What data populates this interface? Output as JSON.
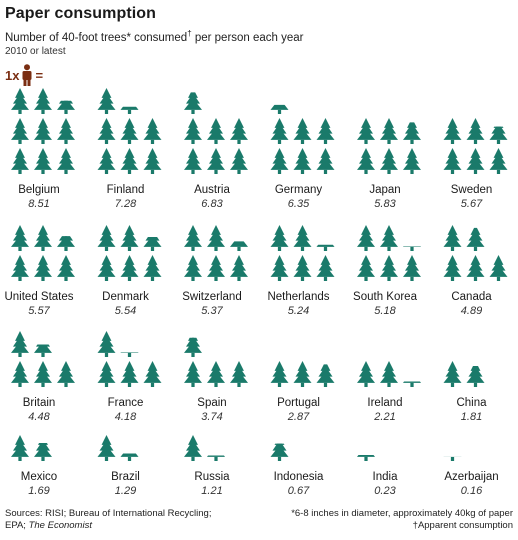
{
  "header": {
    "title": "Paper consumption",
    "subtitle": "Number of 40-foot trees* consumed",
    "subtitle_mark": "†",
    "subtitle_tail": " per person each year",
    "note": "2010 or latest"
  },
  "legend": {
    "prefix": "1x",
    "suffix": "=",
    "icon": "person-icon",
    "color": "#7a2e12"
  },
  "chart_data": {
    "type": "pictogram",
    "unit": "trees per person per year",
    "tree_color": "#1a7a6a",
    "items": [
      {
        "country": "Belgium",
        "value": 8.51,
        "label": "8.51"
      },
      {
        "country": "Finland",
        "value": 7.28,
        "label": "7.28"
      },
      {
        "country": "Austria",
        "value": 6.83,
        "label": "6.83"
      },
      {
        "country": "Germany",
        "value": 6.35,
        "label": "6.35"
      },
      {
        "country": "Japan",
        "value": 5.83,
        "label": "5.83"
      },
      {
        "country": "Sweden",
        "value": 5.67,
        "label": "5.67"
      },
      {
        "country": "United States",
        "value": 5.57,
        "label": "5.57"
      },
      {
        "country": "Denmark",
        "value": 5.54,
        "label": "5.54"
      },
      {
        "country": "Switzerland",
        "value": 5.37,
        "label": "5.37"
      },
      {
        "country": "Netherlands",
        "value": 5.24,
        "label": "5.24"
      },
      {
        "country": "South Korea",
        "value": 5.18,
        "label": "5.18"
      },
      {
        "country": "Canada",
        "value": 4.89,
        "label": "4.89"
      },
      {
        "country": "Britain",
        "value": 4.48,
        "label": "4.48"
      },
      {
        "country": "France",
        "value": 4.18,
        "label": "4.18"
      },
      {
        "country": "Spain",
        "value": 3.74,
        "label": "3.74"
      },
      {
        "country": "Portugal",
        "value": 2.87,
        "label": "2.87"
      },
      {
        "country": "Ireland",
        "value": 2.21,
        "label": "2.21"
      },
      {
        "country": "China",
        "value": 1.81,
        "label": "1.81"
      },
      {
        "country": "Mexico",
        "value": 1.69,
        "label": "1.69"
      },
      {
        "country": "Brazil",
        "value": 1.29,
        "label": "1.29"
      },
      {
        "country": "Russia",
        "value": 1.21,
        "label": "1.21"
      },
      {
        "country": "Indonesia",
        "value": 0.67,
        "label": "0.67"
      },
      {
        "country": "India",
        "value": 0.23,
        "label": "0.23"
      },
      {
        "country": "Azerbaijan",
        "value": 0.16,
        "label": "0.16"
      }
    ]
  },
  "footer": {
    "sources_line1": "Sources: RISI; Bureau of International Recycling;",
    "sources_line2_prefix": "EPA; ",
    "sources_line2_italic": "The Economist",
    "footnote1": "*6-8 inches in diameter, approximately 40kg of paper",
    "footnote2": "†Apparent consumption"
  }
}
